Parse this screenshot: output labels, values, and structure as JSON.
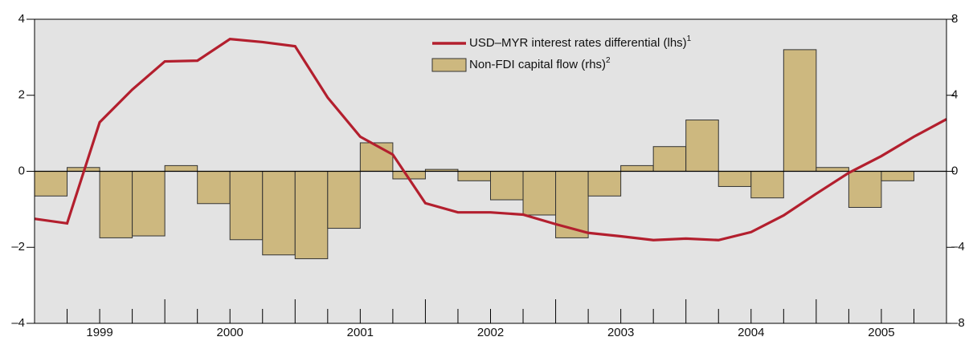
{
  "chart_data": {
    "type": "bar-line",
    "xlim": [
      1999,
      2006
    ],
    "xticks": [
      {
        "value": 1999.5,
        "label": "1999"
      },
      {
        "value": 2000.5,
        "label": "2000"
      },
      {
        "value": 2001.5,
        "label": "2001"
      },
      {
        "value": 2002.5,
        "label": "2002"
      },
      {
        "value": 2003.5,
        "label": "2003"
      },
      {
        "value": 2004.5,
        "label": "2004"
      },
      {
        "value": 2005.5,
        "label": "2005"
      }
    ],
    "ylim": [
      -4,
      4
    ],
    "yticks": [
      {
        "value": -4,
        "label": "–4"
      },
      {
        "value": -2,
        "label": "–2"
      },
      0,
      2,
      4
    ],
    "y2lim": [
      -8,
      8
    ],
    "y2ticks": [
      {
        "value": -8,
        "label": "–8"
      },
      {
        "value": -4,
        "label": "–4"
      },
      0,
      4,
      8
    ],
    "legend": "top-right",
    "series": [
      {
        "name": "USD–MYR interest rates differential (lhs)",
        "footnote_marker": "1",
        "kind": "line",
        "color": "#b31f2e",
        "x": [
          1999,
          1999.25,
          1999.5,
          1999.75,
          2000,
          2000.25,
          2000.5,
          2000.75,
          2001,
          2001.25,
          2001.5,
          2001.75,
          2002,
          2002.25,
          2002.5,
          2002.75,
          2003,
          2003.25,
          2003.5,
          2003.75,
          2004,
          2004.25,
          2004.5,
          2004.75,
          2005,
          2005.25,
          2005.5,
          2005.75,
          2006
        ],
        "values": [
          -1.25,
          -1.37,
          1.29,
          2.15,
          2.89,
          2.91,
          3.48,
          3.4,
          3.29,
          1.94,
          0.91,
          0.44,
          -0.84,
          -1.08,
          -1.08,
          -1.14,
          -1.39,
          -1.62,
          -1.71,
          -1.81,
          -1.77,
          -1.81,
          -1.6,
          -1.16,
          -0.59,
          -0.04,
          0.4,
          0.91,
          1.37
        ]
      },
      {
        "name": "Non-FDI capital flow (rhs)",
        "footnote_marker": "2",
        "kind": "bar",
        "axis": "y2",
        "color": "#cdb87f",
        "x": [
          1999,
          1999.25,
          1999.5,
          1999.75,
          2000,
          2000.25,
          2000.5,
          2000.75,
          2001,
          2001.25,
          2001.5,
          2001.75,
          2002,
          2002.25,
          2002.5,
          2002.75,
          2003,
          2003.25,
          2003.5,
          2003.75,
          2004,
          2004.25,
          2004.5,
          2004.75,
          2005,
          2005.25,
          2005.5
        ],
        "values": [
          -1.3,
          0.2,
          -3.5,
          -3.4,
          0.3,
          -1.7,
          -3.6,
          -4.4,
          -4.6,
          -3.0,
          1.5,
          -0.4,
          0.1,
          -0.5,
          -1.5,
          -2.3,
          -3.5,
          -1.3,
          0.3,
          1.3,
          2.7,
          -0.8,
          -1.4,
          6.4,
          0.2,
          -1.9,
          -0.5
        ]
      }
    ]
  }
}
